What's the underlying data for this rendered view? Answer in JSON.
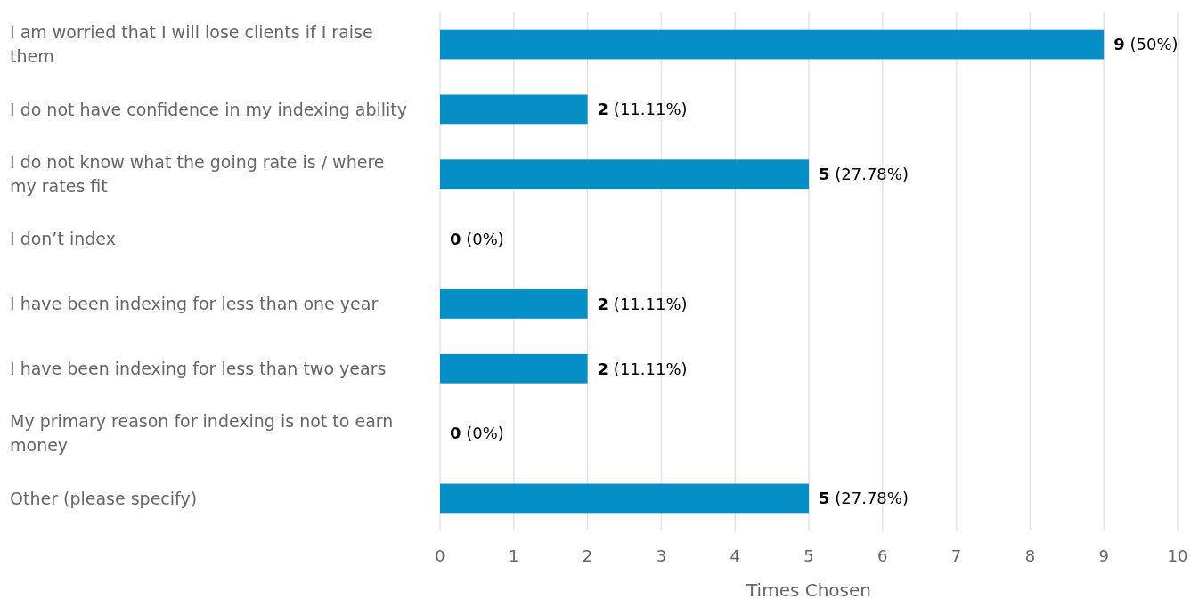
{
  "chart_data": {
    "type": "bar",
    "orientation": "horizontal",
    "categories": [
      "I am worried that I will lose clients if I raise them",
      "I do not have confidence in my indexing ability",
      "I do not know what the going rate is / where my rates fit",
      "I don’t index",
      "I have been indexing for less than one year",
      "I have been indexing for less than two years",
      "My primary reason for indexing is not to earn money",
      "Other (please specify)"
    ],
    "values": [
      9,
      2,
      5,
      0,
      2,
      2,
      0,
      5
    ],
    "value_labels": [
      "9 (50%)",
      "2 (11.11%)",
      "5 (27.78%)",
      "0 (0%)",
      "2 (11.11%)",
      "2 (11.11%)",
      "0 (0%)",
      "5 (27.78%)"
    ],
    "color": "#068fc6",
    "xlim": [
      0,
      10
    ],
    "xticks": [
      0,
      1,
      2,
      3,
      4,
      5,
      6,
      7,
      8,
      9,
      10
    ],
    "xlabel": "Times Chosen",
    "grid": "x"
  }
}
